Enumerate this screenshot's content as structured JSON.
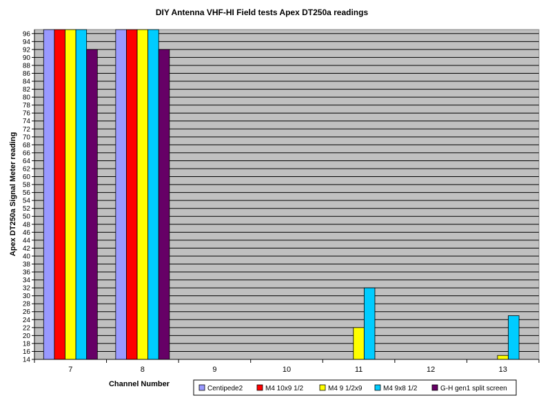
{
  "chart_data": {
    "type": "bar",
    "title": "DIY Antenna VHF-HI Field tests Apex DT250a readings",
    "xlabel": "Channel Number",
    "ylabel": "Apex DT250a Signal Meter reading",
    "ylim": [
      14,
      97
    ],
    "yticks": [
      14,
      16,
      18,
      20,
      22,
      24,
      26,
      28,
      30,
      32,
      34,
      36,
      38,
      40,
      42,
      44,
      46,
      48,
      50,
      52,
      54,
      56,
      58,
      60,
      62,
      64,
      66,
      68,
      70,
      72,
      74,
      76,
      78,
      80,
      82,
      84,
      86,
      88,
      90,
      92,
      94,
      96
    ],
    "grid": true,
    "legend": "bottom",
    "categories": [
      "7",
      "8",
      "9",
      "10",
      "11",
      "12",
      "13"
    ],
    "series": [
      {
        "name": "Centipede2",
        "color": "#9999ff",
        "values": [
          97,
          97,
          null,
          null,
          null,
          null,
          null
        ]
      },
      {
        "name": "M4 10x9 1/2",
        "color": "#ff0000",
        "values": [
          97,
          97,
          null,
          null,
          null,
          null,
          null
        ]
      },
      {
        "name": "M4 9 1/2x9",
        "color": "#ffff00",
        "values": [
          97,
          97,
          null,
          null,
          22,
          null,
          15
        ]
      },
      {
        "name": "M4 9x8 1/2",
        "color": "#00ccff",
        "values": [
          97,
          97,
          null,
          null,
          32,
          null,
          25
        ]
      },
      {
        "name": "G-H gen1 split screen",
        "color": "#660066",
        "values": [
          92,
          92,
          null,
          null,
          null,
          null,
          null
        ]
      }
    ],
    "plot_background": "#c0c0c0"
  }
}
